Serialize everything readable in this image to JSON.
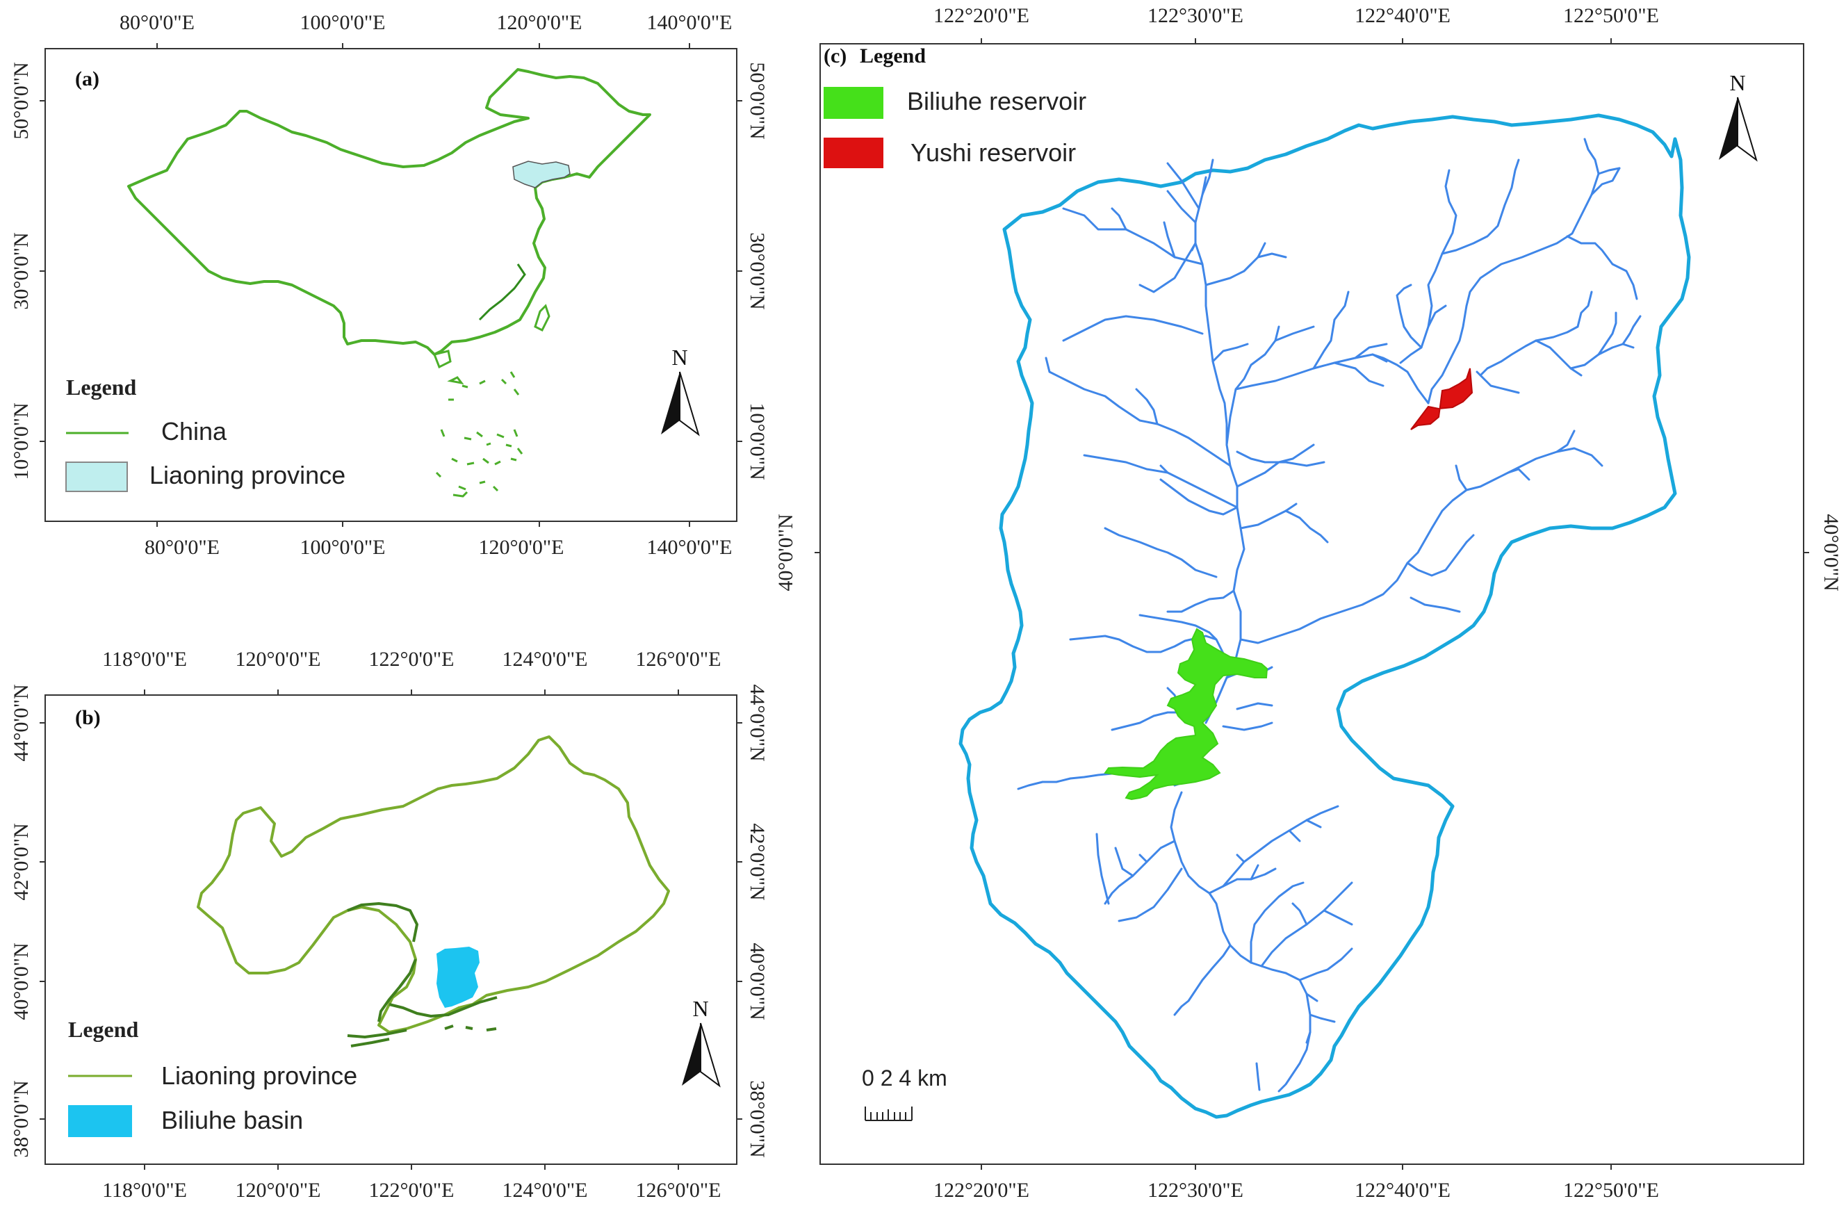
{
  "panel_a": {
    "label": "(a)",
    "ticks_top": [
      "80°0'0\"E",
      "100°0'0\"E",
      "120°0'0\"E",
      "140°0'0\"E"
    ],
    "ticks_bottom": [
      "80°0'0\"E",
      "100°0'0\"E",
      "120°0'0\"E",
      "140°0'0\"E"
    ],
    "ticks_left": [
      "50°0'0\"N",
      "30°0'0\"N",
      "10°0'0\"N"
    ],
    "ticks_right": [
      "50°0'0\"N",
      "30°0'0\"N",
      "10°0'0\"N"
    ],
    "legend": {
      "title": "Legend",
      "items": [
        "China",
        "Liaoning province"
      ]
    },
    "north": "N",
    "colors": {
      "china": "#4caf2a",
      "liaoning": "#bfeeee"
    }
  },
  "panel_b": {
    "label": "(b)",
    "ticks_top": [
      "118°0'0\"E",
      "120°0'0\"E",
      "122°0'0\"E",
      "124°0'0\"E",
      "126°0'0\"E"
    ],
    "ticks_bottom": [
      "118°0'0\"E",
      "120°0'0\"E",
      "122°0'0\"E",
      "124°0'0\"E",
      "126°0'0\"E"
    ],
    "ticks_left": [
      "44°0'0\"N",
      "42°0'0\"N",
      "40°0'0\"N",
      "38°0'0\"N"
    ],
    "ticks_right": [
      "44°0'0\"N",
      "42°0'0\"N",
      "40°0'0\"N",
      "38°0'0\"N"
    ],
    "legend": {
      "title": "Legend",
      "items": [
        "Liaoning province",
        "Biliuhe basin"
      ]
    },
    "north": "N",
    "colors": {
      "liaoning": "#7aac2e",
      "basin": "#1cc4f0"
    }
  },
  "panel_c": {
    "label": "(c)",
    "ticks_top": [
      "122°20'0\"E",
      "122°30'0\"E",
      "122°40'0\"E",
      "122°50'0\"E"
    ],
    "ticks_bottom": [
      "122°20'0\"E",
      "122°30'0\"E",
      "122°40'0\"E",
      "122°50'0\"E"
    ],
    "ticks_left": [
      "40°0'0\"N"
    ],
    "ticks_right": [
      "40°0'0\"N"
    ],
    "legend": {
      "title": "Legend",
      "items": [
        "Biliuhe reservoir",
        "Yushi reservoir"
      ]
    },
    "north": "N",
    "scale": "0 2 4 km",
    "colors": {
      "boundary": "#19a7dc",
      "rivers": "#3f86e8",
      "biliuhe": "#45e01a",
      "yushi": "#dd1111"
    }
  }
}
